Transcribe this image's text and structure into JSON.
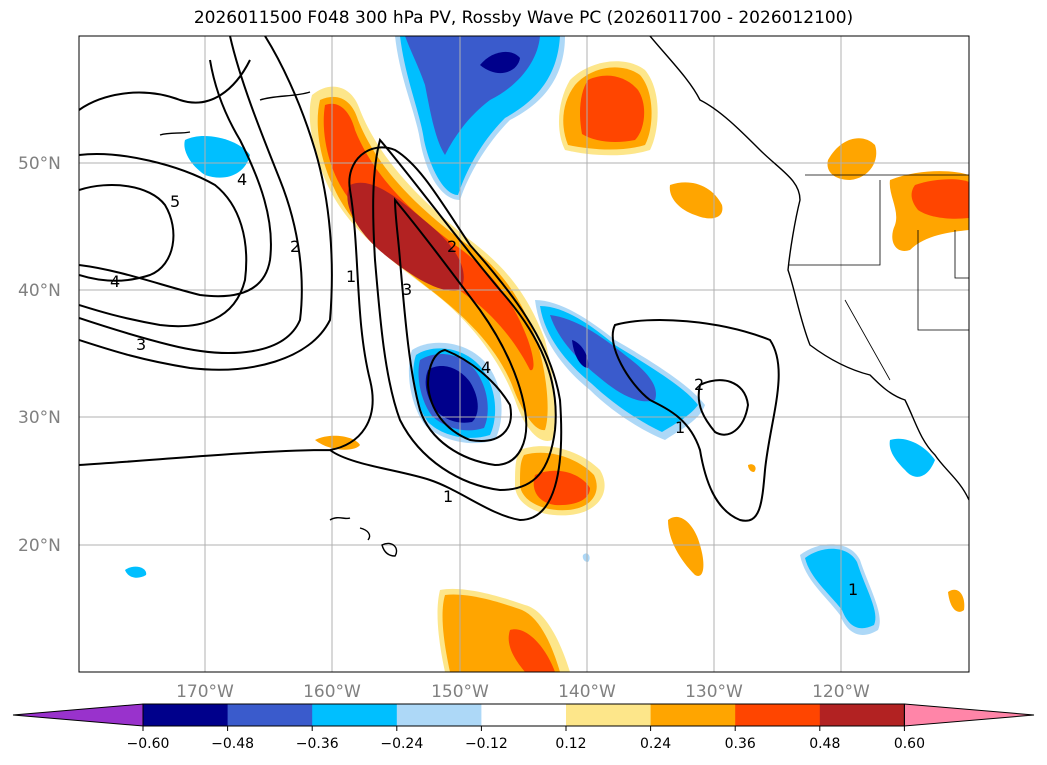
{
  "title": "2026011500 F048 300 hPa PV, Rossby Wave PC (2026011700 - 2026012100)",
  "lat_labels": [
    "50°N",
    "40°N",
    "30°N",
    "20°N"
  ],
  "lon_labels": [
    "170°W",
    "160°W",
    "150°W",
    "140°W",
    "130°W",
    "120°W"
  ],
  "contour_labels": [
    "5",
    "4",
    "4",
    "3",
    "2",
    "1",
    "1",
    "3",
    "2",
    "4",
    "2",
    "1",
    "1"
  ],
  "colorbar": {
    "ticks": [
      "−0.60",
      "−0.48",
      "−0.36",
      "−0.24",
      "−0.12",
      "0.12",
      "0.24",
      "0.36",
      "0.48",
      "0.60"
    ],
    "colors": [
      "#9932cc",
      "#00008b",
      "#3a5bcc",
      "#00bfff",
      "#add8f7",
      "#ffffff",
      "#fde68a",
      "#ffa500",
      "#ff4500",
      "#b22222",
      "#ff85a8"
    ]
  },
  "colors": {
    "neg_strong": "#00008b",
    "neg_mid": "#3a5bcc",
    "neg_light": "#00bfff",
    "neg_faint": "#add8f7",
    "pos_faint": "#fde68a",
    "pos_light": "#ffa500",
    "pos_mid": "#ff4500",
    "pos_strong": "#b22222"
  }
}
